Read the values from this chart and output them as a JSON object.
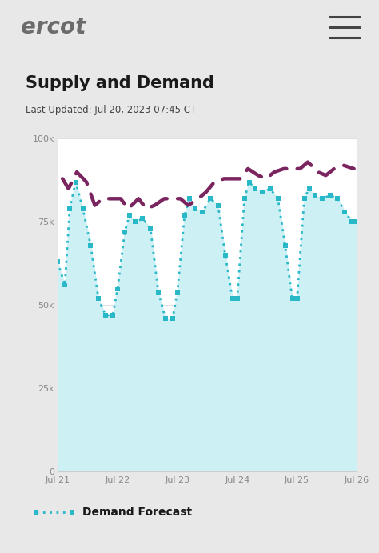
{
  "title": "Supply and Demand",
  "subtitle": "Last Updated: Jul 20, 2023 07:45 CT",
  "header_bg": "#ffffff",
  "card_bg": "#ffffff",
  "outer_bg": "#e8e8e8",
  "ylim": [
    0,
    100000
  ],
  "yticks": [
    0,
    25000,
    50000,
    75000,
    100000
  ],
  "ytick_labels": [
    "0",
    "25k",
    "50k",
    "75k",
    "100k"
  ],
  "xtick_labels": [
    "Jul 21",
    "Jul 22",
    "Jul 23",
    "Jul 24",
    "Jul 25",
    "Jul 26"
  ],
  "demand_color": "#29b8c8",
  "supply_color": "#7b2560",
  "fill_color": "#cdf0f5",
  "legend_demand": "Demand Forecast",
  "demand_x": [
    0.0,
    0.12,
    0.2,
    0.3,
    0.42,
    0.55,
    0.68,
    0.8,
    0.92,
    1.0,
    1.12,
    1.2,
    1.3,
    1.42,
    1.55,
    1.68,
    1.8,
    1.92,
    2.0,
    2.12,
    2.2,
    2.3,
    2.42,
    2.55,
    2.68,
    2.8,
    2.92,
    3.0,
    3.12,
    3.2,
    3.3,
    3.42,
    3.55,
    3.68,
    3.8,
    3.92,
    4.0,
    4.12,
    4.2,
    4.3,
    4.42,
    4.55,
    4.68,
    4.8,
    4.92,
    5.0
  ],
  "demand_y": [
    63000,
    56000,
    79000,
    87000,
    79000,
    68000,
    52000,
    47000,
    47000,
    55000,
    72000,
    77000,
    75000,
    76000,
    73000,
    54000,
    46000,
    46000,
    54000,
    77000,
    82000,
    79000,
    78000,
    82000,
    80000,
    65000,
    52000,
    52000,
    82000,
    87000,
    85000,
    84000,
    85000,
    82000,
    68000,
    52000,
    52000,
    82000,
    85000,
    83000,
    82000,
    83000,
    82000,
    78000,
    75000,
    75000
  ],
  "supply_x": [
    0.08,
    0.18,
    0.32,
    0.48,
    0.62,
    0.75,
    1.05,
    1.18,
    1.35,
    1.48,
    1.62,
    1.78,
    2.05,
    2.18,
    2.35,
    2.48,
    2.62,
    2.78,
    3.05,
    3.18,
    3.35,
    3.48,
    3.62,
    3.78,
    4.05,
    4.18,
    4.35,
    4.48,
    4.62,
    4.78,
    4.95
  ],
  "supply_y": [
    88000,
    85000,
    90000,
    87000,
    80000,
    82000,
    82000,
    79000,
    82000,
    79000,
    80000,
    82000,
    82000,
    80000,
    82000,
    84000,
    87000,
    88000,
    88000,
    91000,
    89000,
    88000,
    90000,
    91000,
    91000,
    93000,
    90000,
    89000,
    91000,
    92000,
    91000
  ]
}
